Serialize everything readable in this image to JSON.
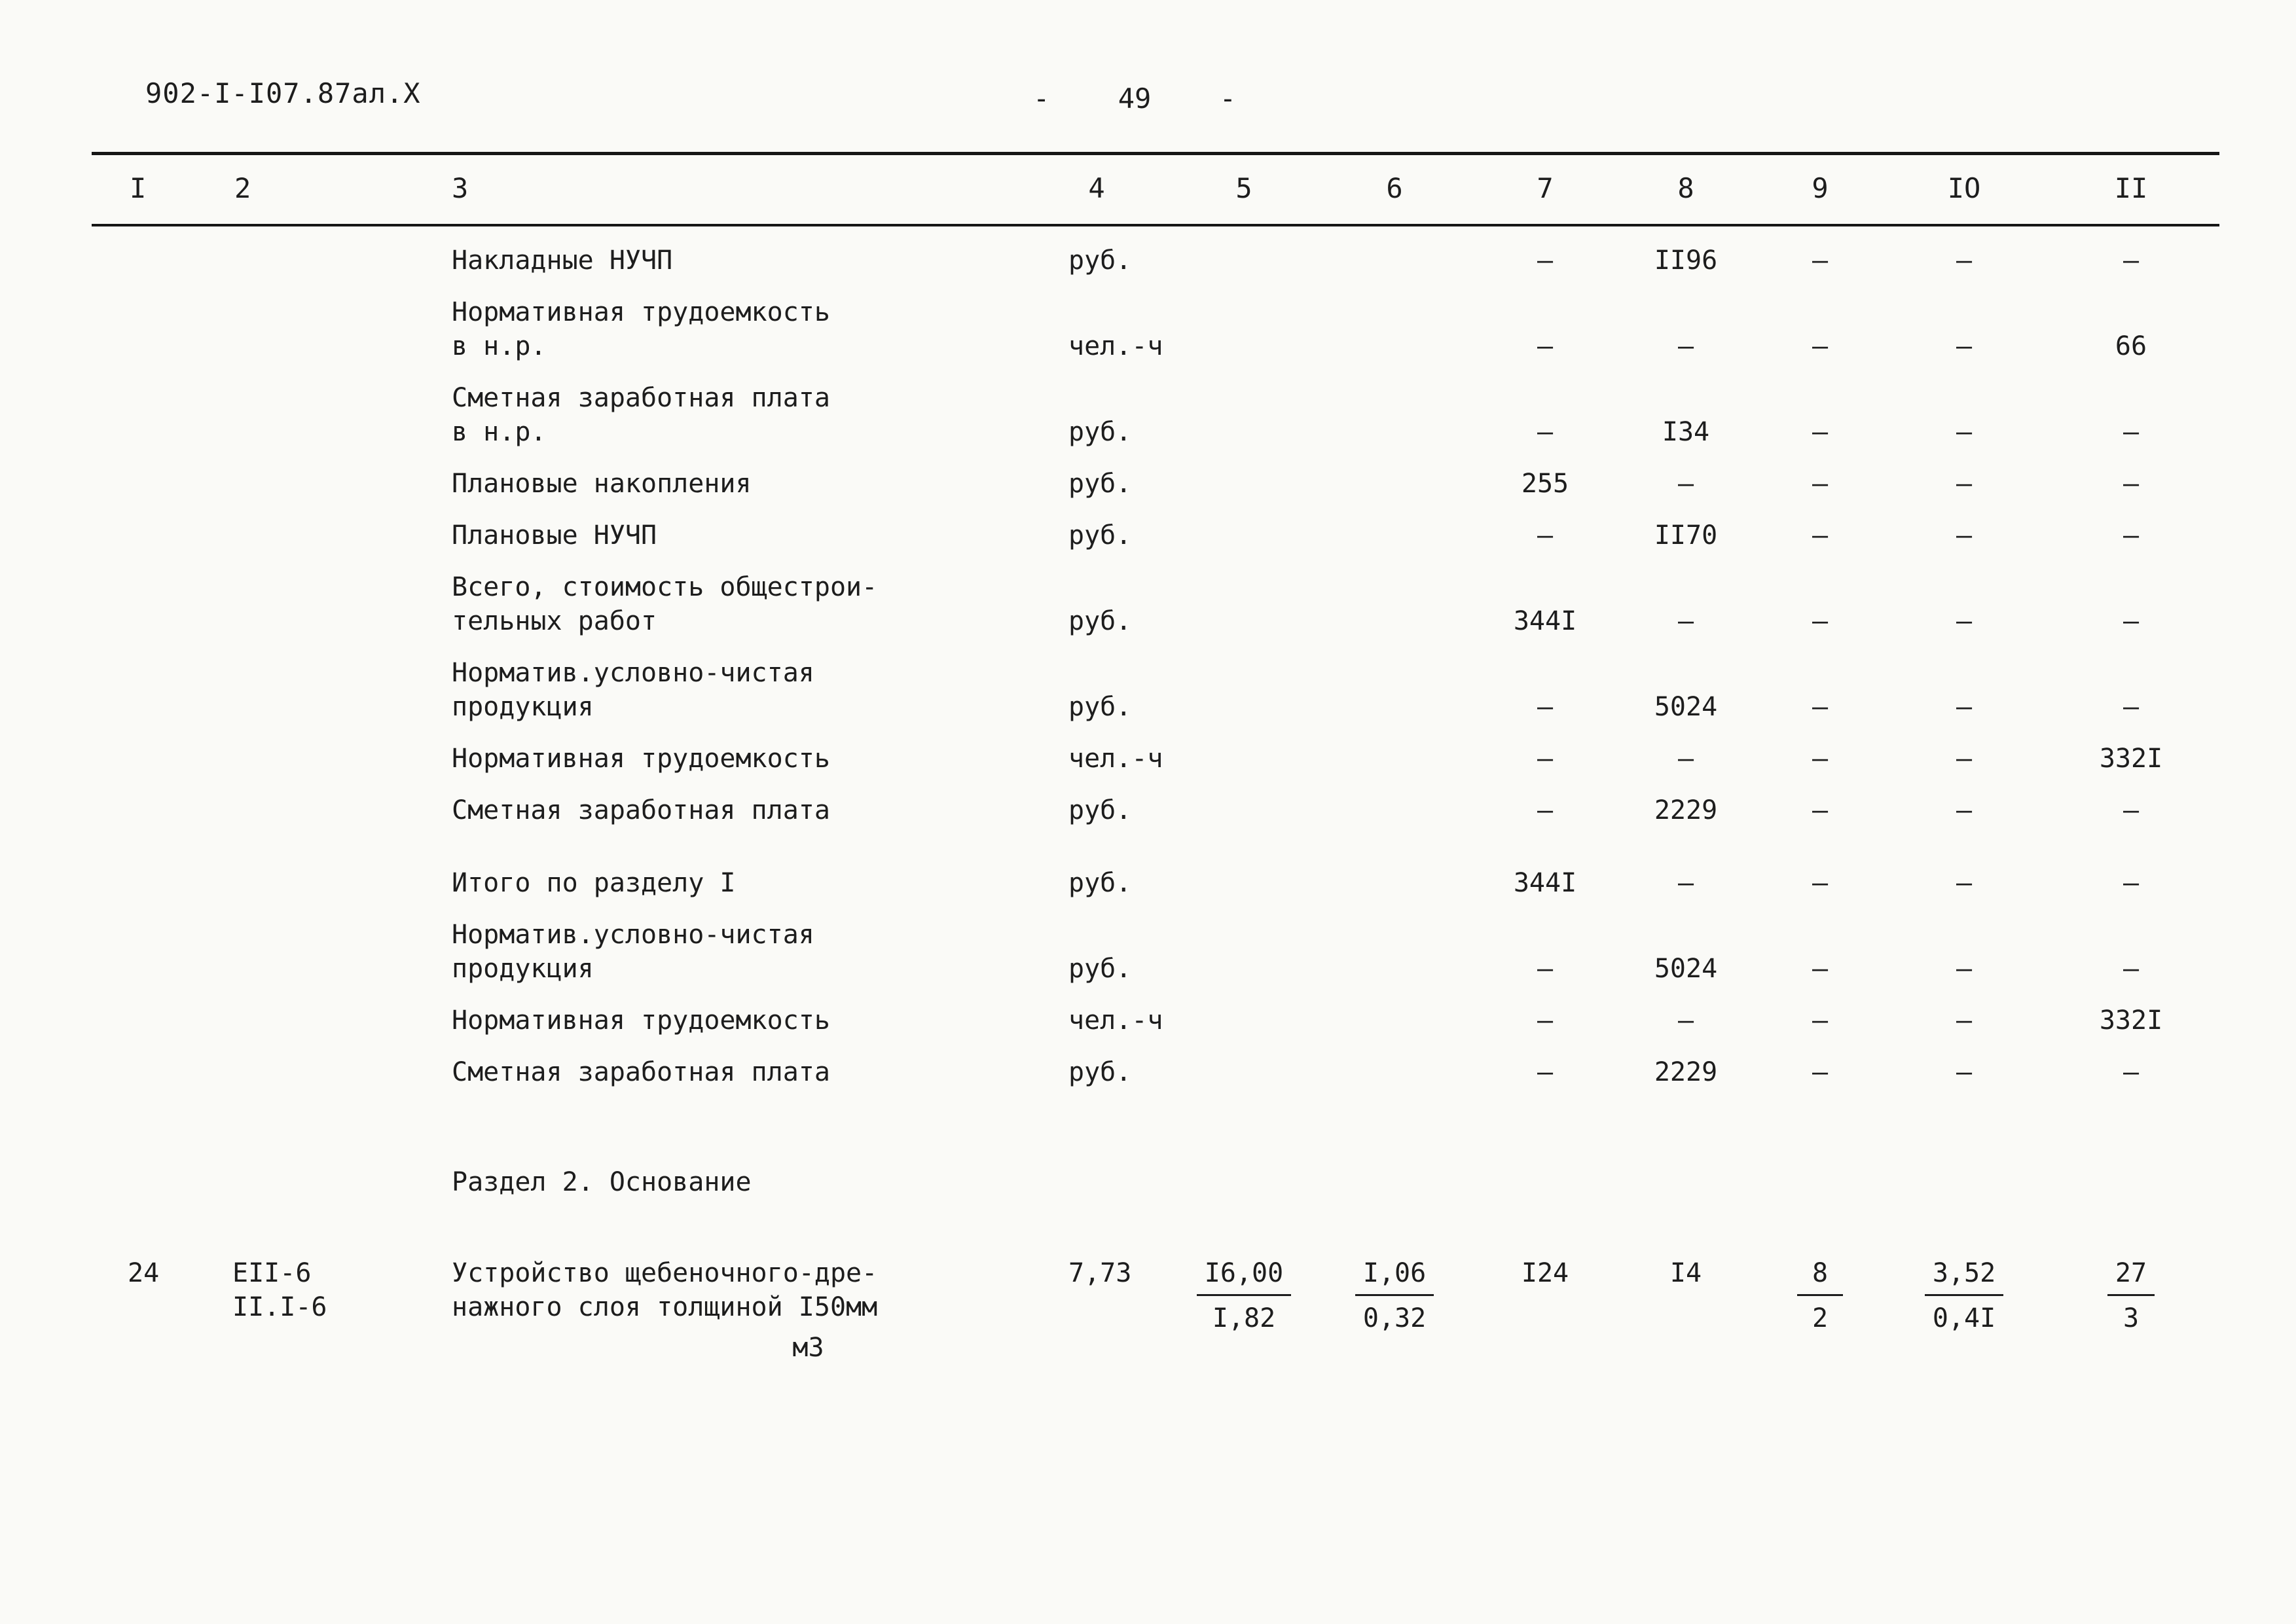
{
  "header": {
    "doc_number": "902-I-I07.87ал.X",
    "page_dash_left": "-",
    "page_number": "49",
    "page_dash_right": "-"
  },
  "table": {
    "columns": [
      "I",
      "2",
      "3",
      "4",
      "5",
      "6",
      "7",
      "8",
      "9",
      "IO",
      "II"
    ],
    "rows": [
      {
        "kind": "normal",
        "cells": [
          "",
          "",
          "Накладные НУЧП",
          "руб.",
          "",
          "",
          "–",
          "II96",
          "–",
          "–",
          "–"
        ]
      },
      {
        "kind": "normal",
        "cells": [
          "",
          "",
          "Нормативная трудоемкость\nв н.р.",
          "чел.-ч",
          "",
          "",
          "–",
          "–",
          "–",
          "–",
          "66"
        ]
      },
      {
        "kind": "normal",
        "cells": [
          "",
          "",
          "Сметная заработная плата\nв н.р.",
          "руб.",
          "",
          "",
          "–",
          "I34",
          "–",
          "–",
          "–"
        ]
      },
      {
        "kind": "normal",
        "cells": [
          "",
          "",
          "Плановые накопления",
          "руб.",
          "",
          "",
          "255",
          "–",
          "–",
          "–",
          "–"
        ]
      },
      {
        "kind": "normal",
        "cells": [
          "",
          "",
          "Плановые НУЧП",
          "руб.",
          "",
          "",
          "–",
          "II70",
          "–",
          "–",
          "–"
        ]
      },
      {
        "kind": "normal",
        "cells": [
          "",
          "",
          "Всего, стоимость общестрои-\nтельных работ",
          "руб.",
          "",
          "",
          "344I",
          "–",
          "–",
          "–",
          "–"
        ]
      },
      {
        "kind": "normal",
        "cells": [
          "",
          "",
          "Норматив.условно-чистая\nпродукция",
          "руб.",
          "",
          "",
          "–",
          "5024",
          "–",
          "–",
          "–"
        ]
      },
      {
        "kind": "normal",
        "cells": [
          "",
          "",
          "Нормативная трудоемкость",
          "чел.-ч",
          "",
          "",
          "–",
          "–",
          "–",
          "–",
          "332I"
        ]
      },
      {
        "kind": "normal",
        "cells": [
          "",
          "",
          "Сметная заработная плата",
          "руб.",
          "",
          "",
          "–",
          "2229",
          "–",
          "–",
          "–"
        ]
      },
      {
        "kind": "totals",
        "cells": [
          "",
          "",
          "Итого по разделу I",
          "руб.",
          "",
          "",
          "344I",
          "–",
          "–",
          "–",
          "–"
        ]
      },
      {
        "kind": "normal",
        "cells": [
          "",
          "",
          "Норматив.условно-чистая\nпродукция",
          "руб.",
          "",
          "",
          "–",
          "5024",
          "–",
          "–",
          "–"
        ]
      },
      {
        "kind": "normal",
        "cells": [
          "",
          "",
          "Нормативная трудоемкость",
          "чел.-ч",
          "",
          "",
          "–",
          "–",
          "–",
          "–",
          "332I"
        ]
      },
      {
        "kind": "normal",
        "cells": [
          "",
          "",
          "Сметная заработная плата",
          "руб.",
          "",
          "",
          "–",
          "2229",
          "–",
          "–",
          "–"
        ]
      },
      {
        "kind": "section",
        "cells": [
          "",
          "",
          "Раздел 2. Основание",
          "",
          "",
          "",
          "",
          "",
          "",
          "",
          ""
        ]
      },
      {
        "kind": "item",
        "cells": [
          "24",
          "ЕII-6\nII.I-6",
          {
            "lines": "Устройство щебеночного-дре-\nнажного слоя толщиной I50мм",
            "sub": "м3"
          },
          "7,73",
          {
            "num": "I6,00",
            "den": "I,82"
          },
          {
            "num": "I,06",
            "den": "0,32"
          },
          "I24",
          "I4",
          {
            "num": "8",
            "den": "2"
          },
          {
            "num": "3,52",
            "den": "0,4I"
          },
          {
            "num": "27",
            "den": "3"
          }
        ]
      }
    ]
  }
}
